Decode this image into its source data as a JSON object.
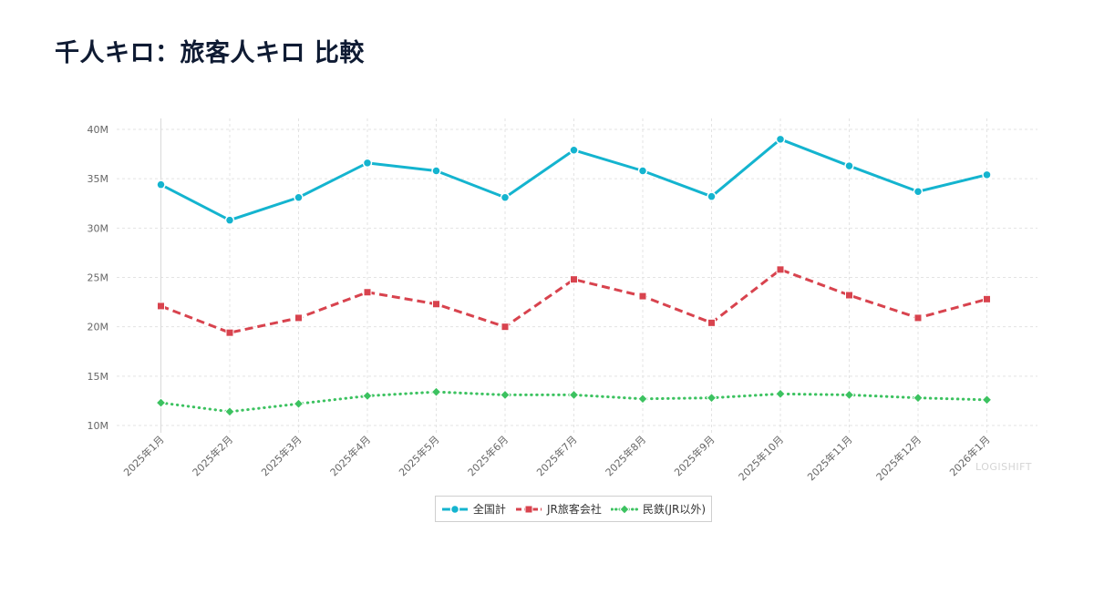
{
  "title": "千人キロ：旅客人キロ 比較",
  "watermark": "LOGISHIFT",
  "colors": {
    "total": "#14b4cf",
    "jr": "#d8434e",
    "private": "#3cc260",
    "grid": "#e3e3e3"
  },
  "chart_data": {
    "type": "line",
    "title": "千人キロ：旅客人キロ 比較",
    "categories": [
      "2025年1月",
      "2025年2月",
      "2025年3月",
      "2025年4月",
      "2025年5月",
      "2025年6月",
      "2025年7月",
      "2025年8月",
      "2025年9月",
      "2025年10月",
      "2025年11月",
      "2025年12月",
      "2026年1月"
    ],
    "y_ticks": [
      10,
      15,
      20,
      25,
      30,
      35,
      40
    ],
    "y_tick_labels": [
      "10M",
      "15M",
      "20M",
      "25M",
      "30M",
      "35M",
      "40M"
    ],
    "ylim": [
      10,
      40
    ],
    "grid": true,
    "legend_position": "bottom-center",
    "series": [
      {
        "name": "全国計",
        "key": "total",
        "dash": "solid",
        "marker": "circle",
        "values": [
          34.4,
          30.8,
          33.1,
          36.6,
          35.8,
          33.1,
          37.9,
          35.8,
          33.2,
          39.0,
          36.3,
          33.7,
          35.4
        ]
      },
      {
        "name": "JR旅客会社",
        "key": "jr",
        "dash": "dashed",
        "marker": "square",
        "values": [
          22.1,
          19.4,
          20.9,
          23.5,
          22.3,
          20.0,
          24.8,
          23.1,
          20.4,
          25.8,
          23.2,
          20.9,
          22.8
        ]
      },
      {
        "name": "民鉄(JR以外)",
        "key": "private",
        "dash": "dotted",
        "marker": "diamond",
        "values": [
          12.3,
          11.4,
          12.2,
          13.0,
          13.4,
          13.1,
          13.1,
          12.7,
          12.8,
          13.2,
          13.1,
          12.8,
          12.6
        ]
      }
    ]
  }
}
